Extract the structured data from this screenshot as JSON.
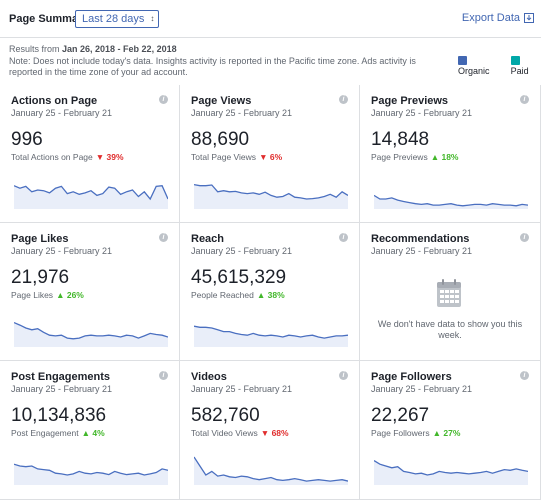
{
  "header": {
    "page_title": "Page Summary",
    "range_select": "Last 28 days",
    "export_label": "Export Data"
  },
  "results": {
    "prefix": "Results from ",
    "range": "Jan 26, 2018 - Feb 22, 2018",
    "note": "Note: Does not include today's data. Insights activity is reported in the Pacific time zone. Ads activity is reported in the time zone of your ad account."
  },
  "legend": [
    {
      "label": "Organic",
      "color": "#4267b2"
    },
    {
      "label": "Paid",
      "color": "#00a8a8"
    }
  ],
  "colors": {
    "line": "#4a6fc0",
    "fill": "#e9eef9",
    "down": "#e02c2c",
    "up": "#42b72a"
  },
  "cards": [
    {
      "title": "Actions on Page",
      "date": "January 25 - February 21",
      "value": "996",
      "label": "Total Actions on Page",
      "pct": "39%",
      "trend": "down",
      "points": [
        0.62,
        0.55,
        0.6,
        0.45,
        0.5,
        0.48,
        0.42,
        0.55,
        0.6,
        0.4,
        0.45,
        0.38,
        0.42,
        0.48,
        0.35,
        0.4,
        0.58,
        0.55,
        0.38,
        0.45,
        0.5,
        0.32,
        0.45,
        0.25,
        0.6,
        0.62,
        0.25
      ]
    },
    {
      "title": "Page Views",
      "date": "January 25 - February 21",
      "value": "88,690",
      "label": "Total Page Views",
      "pct": "6%",
      "trend": "down",
      "points": [
        0.65,
        0.62,
        0.62,
        0.64,
        0.45,
        0.48,
        0.45,
        0.46,
        0.42,
        0.4,
        0.42,
        0.38,
        0.44,
        0.35,
        0.3,
        0.32,
        0.4,
        0.3,
        0.28,
        0.25,
        0.26,
        0.28,
        0.32,
        0.38,
        0.3,
        0.45,
        0.35
      ]
    },
    {
      "title": "Page Previews",
      "date": "January 25 - February 21",
      "value": "14,848",
      "label": "Page Previews",
      "pct": "18%",
      "trend": "up",
      "points": [
        0.35,
        0.25,
        0.25,
        0.28,
        0.22,
        0.18,
        0.15,
        0.12,
        0.1,
        0.12,
        0.08,
        0.08,
        0.1,
        0.12,
        0.08,
        0.06,
        0.08,
        0.1,
        0.1,
        0.08,
        0.12,
        0.1,
        0.08,
        0.08,
        0.06,
        0.1,
        0.08
      ]
    },
    {
      "title": "Page Likes",
      "date": "January 25 - February 21",
      "value": "21,976",
      "label": "Page Likes",
      "pct": "26%",
      "trend": "up",
      "points": [
        0.65,
        0.58,
        0.5,
        0.45,
        0.48,
        0.38,
        0.3,
        0.28,
        0.3,
        0.22,
        0.2,
        0.22,
        0.28,
        0.3,
        0.28,
        0.28,
        0.3,
        0.28,
        0.25,
        0.3,
        0.28,
        0.22,
        0.28,
        0.35,
        0.32,
        0.3,
        0.25
      ]
    },
    {
      "title": "Reach",
      "date": "January 25 - February 21",
      "value": "45,615,329",
      "label": "People Reached",
      "pct": "38%",
      "trend": "up",
      "points": [
        0.55,
        0.52,
        0.52,
        0.5,
        0.45,
        0.4,
        0.4,
        0.35,
        0.32,
        0.3,
        0.35,
        0.3,
        0.28,
        0.3,
        0.28,
        0.25,
        0.3,
        0.28,
        0.25,
        0.28,
        0.3,
        0.25,
        0.22,
        0.25,
        0.28,
        0.28,
        0.3
      ]
    },
    {
      "title": "Recommendations",
      "date": "January 25 - February 21",
      "empty_message": "We don't have data to show you this week."
    },
    {
      "title": "Post Engagements",
      "date": "January 25 - February 21",
      "value": "10,134,836",
      "label": "Post Engagement",
      "pct": "4%",
      "trend": "up",
      "points": [
        0.55,
        0.5,
        0.48,
        0.5,
        0.42,
        0.4,
        0.38,
        0.3,
        0.28,
        0.25,
        0.28,
        0.35,
        0.3,
        0.28,
        0.32,
        0.3,
        0.26,
        0.35,
        0.3,
        0.26,
        0.28,
        0.3,
        0.25,
        0.28,
        0.32,
        0.42,
        0.38
      ]
    },
    {
      "title": "Videos",
      "date": "January 25 - February 21",
      "value": "582,760",
      "label": "Total Video Views",
      "pct": "68%",
      "trend": "down",
      "points": [
        0.75,
        0.5,
        0.25,
        0.35,
        0.22,
        0.25,
        0.2,
        0.18,
        0.22,
        0.2,
        0.15,
        0.12,
        0.15,
        0.18,
        0.12,
        0.1,
        0.12,
        0.15,
        0.12,
        0.08,
        0.1,
        0.12,
        0.1,
        0.08,
        0.1,
        0.12,
        0.08
      ]
    },
    {
      "title": "Page Followers",
      "date": "January 25 - February 21",
      "value": "22,267",
      "label": "Page Followers",
      "pct": "27%",
      "trend": "up",
      "points": [
        0.65,
        0.55,
        0.5,
        0.45,
        0.48,
        0.35,
        0.32,
        0.28,
        0.3,
        0.25,
        0.28,
        0.35,
        0.32,
        0.3,
        0.32,
        0.3,
        0.28,
        0.3,
        0.32,
        0.35,
        0.3,
        0.35,
        0.4,
        0.38,
        0.42,
        0.38,
        0.35
      ]
    }
  ]
}
